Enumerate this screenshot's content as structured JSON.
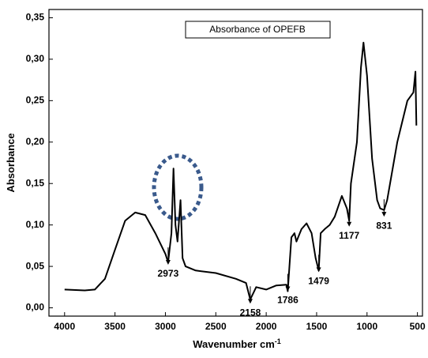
{
  "chart_data": {
    "type": "line",
    "x_label": "Wavenumber cm",
    "x_label_sup": "-1",
    "y_label": "Absorbance",
    "x": [
      4000,
      3800,
      3700,
      3600,
      3500,
      3400,
      3300,
      3200,
      3100,
      3000,
      2973,
      2940,
      2920,
      2900,
      2880,
      2850,
      2830,
      2800,
      2700,
      2500,
      2300,
      2200,
      2158,
      2100,
      2000,
      1900,
      1800,
      1786,
      1750,
      1720,
      1700,
      1650,
      1600,
      1550,
      1510,
      1479,
      1460,
      1420,
      1370,
      1320,
      1250,
      1200,
      1177,
      1160,
      1100,
      1060,
      1035,
      1000,
      950,
      900,
      870,
      831,
      800,
      700,
      600,
      540,
      520,
      510
    ],
    "series": [
      {
        "name": "Absorbance of OPEFB",
        "color": "#000000",
        "values": [
          0.022,
          0.021,
          0.022,
          0.035,
          0.07,
          0.105,
          0.115,
          0.112,
          0.09,
          0.065,
          0.055,
          0.09,
          0.168,
          0.1,
          0.08,
          0.13,
          0.06,
          0.05,
          0.045,
          0.042,
          0.035,
          0.03,
          0.01,
          0.025,
          0.022,
          0.027,
          0.028,
          0.02,
          0.085,
          0.09,
          0.08,
          0.095,
          0.102,
          0.09,
          0.06,
          0.045,
          0.09,
          0.095,
          0.1,
          0.11,
          0.135,
          0.12,
          0.105,
          0.15,
          0.2,
          0.29,
          0.32,
          0.28,
          0.18,
          0.13,
          0.12,
          0.118,
          0.13,
          0.2,
          0.25,
          0.26,
          0.285,
          0.22
        ]
      }
    ],
    "annotations": [
      {
        "text": "2973",
        "x": 2973,
        "y": 0.052
      },
      {
        "text": "2158",
        "x": 2158,
        "y": 0.005
      },
      {
        "text": "1786",
        "x": 1786,
        "y": 0.02
      },
      {
        "text": "1479",
        "x": 1479,
        "y": 0.043
      },
      {
        "text": "1177",
        "x": 1177,
        "y": 0.098
      },
      {
        "text": "831",
        "x": 831,
        "y": 0.11
      }
    ],
    "xlim": [
      4155,
      450
    ],
    "ylim": [
      -0.01,
      0.36
    ],
    "xticks": [
      4000,
      3500,
      3000,
      2500,
      2000,
      1500,
      1000,
      500
    ],
    "yticks": [
      {
        "value": 0,
        "label": "0,00"
      },
      {
        "value": 0.05,
        "label": "0,05"
      },
      {
        "value": 0.1,
        "label": "0,10"
      },
      {
        "value": 0.15,
        "label": "0,15"
      },
      {
        "value": 0.2,
        "label": "0,20"
      },
      {
        "value": 0.25,
        "label": "0,25"
      },
      {
        "value": 0.3,
        "label": "0,30"
      },
      {
        "value": 0.35,
        "label": "0,35"
      }
    ]
  }
}
